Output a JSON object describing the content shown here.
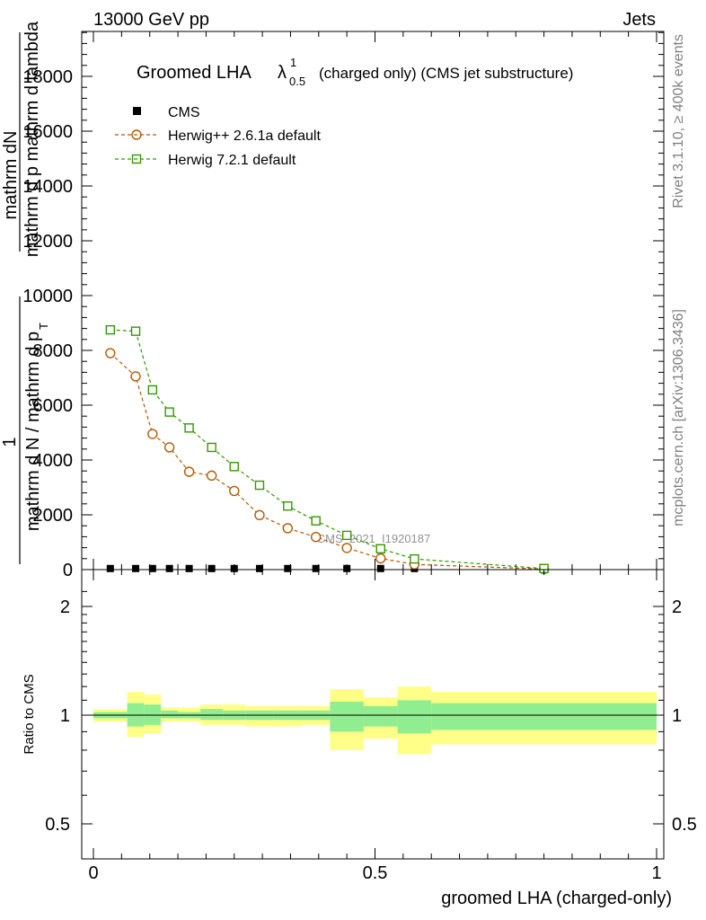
{
  "header": {
    "left": "13000 GeV pp",
    "right": "Jets"
  },
  "side": {
    "top": "Rivet 3.1.10, ≥ 400k events",
    "bottom": "mcplots.cern.ch [arXiv:1306.3436]"
  },
  "watermark": "CMS_2021_I1920187",
  "main": {
    "title_prefix": "Groomed LHA",
    "title_symbol": "λ",
    "title_sup": "1",
    "title_sub": "0.5",
    "title_suffix": "(charged only) (CMS jet substructure)",
    "ylabel_lines": [
      "mathrm dN",
      "mathrm d p_T mathrm d lambda",
      "1",
      "mathrm d N / mathrm d p_T"
    ],
    "ylabel_main": "mathrm d N / mathrm d p",
    "ylabel_top": "mathrm dN",
    "ylabel_mid": "mathrm d p  mathrm d lambda",
    "ylabel_one": "1",
    "ylabel_sub_t": "T"
  },
  "ratio": {
    "ylabel": "Ratio to CMS",
    "xlabel": "groomed LHA (charged-only)"
  },
  "colors": {
    "herwig_old": "#b35900",
    "herwig_new": "#339900",
    "band_yellow": "#ffff88",
    "band_green": "#90ee90"
  },
  "chart_data": [
    {
      "type": "line",
      "title": "Groomed LHA λ^1_0.5 (charged only) (CMS jet substructure)",
      "xlabel": "groomed LHA (charged-only)",
      "ylabel": "1/N dN/dp_T dλ",
      "xlim": [
        -0.02,
        1.0
      ],
      "ylim": [
        0,
        19800
      ],
      "yticks": [
        0,
        2000,
        4000,
        6000,
        8000,
        10000,
        12000,
        14000,
        16000,
        18000
      ],
      "ytick_labels": [
        "0",
        "2000",
        "4000",
        "6000",
        "8000",
        "10000",
        "12000",
        "14000",
        "16000",
        "18000"
      ],
      "legend_position": "top-left",
      "series": [
        {
          "name": "CMS",
          "marker": "filled-square",
          "color": "#000000",
          "x": [
            0.03,
            0.075,
            0.105,
            0.135,
            0.17,
            0.21,
            0.25,
            0.295,
            0.345,
            0.395,
            0.45,
            0.51,
            0.57,
            0.8
          ],
          "y": [
            40,
            40,
            40,
            40,
            40,
            40,
            40,
            40,
            40,
            40,
            40,
            40,
            40,
            40
          ]
        },
        {
          "name": "Herwig++ 2.6.1a default",
          "marker": "open-circle",
          "color": "#b35900",
          "x": [
            0.03,
            0.075,
            0.105,
            0.135,
            0.17,
            0.21,
            0.25,
            0.295,
            0.345,
            0.395,
            0.45,
            0.51,
            0.57,
            0.8
          ],
          "y": [
            7900,
            7050,
            4950,
            4460,
            3570,
            3430,
            2870,
            1990,
            1510,
            1190,
            790,
            410,
            190,
            20
          ]
        },
        {
          "name": "Herwig 7.2.1 default",
          "marker": "open-square",
          "color": "#339900",
          "x": [
            0.03,
            0.075,
            0.105,
            0.135,
            0.17,
            0.21,
            0.25,
            0.295,
            0.345,
            0.395,
            0.45,
            0.51,
            0.57,
            0.8
          ],
          "y": [
            8750,
            8700,
            6560,
            5750,
            5170,
            4460,
            3760,
            3080,
            2320,
            1780,
            1250,
            760,
            390,
            40
          ]
        }
      ]
    },
    {
      "type": "area",
      "title": "Ratio to CMS",
      "xlabel": "groomed LHA (charged-only)",
      "ylabel": "Ratio to CMS",
      "xlim": [
        -0.02,
        1.0
      ],
      "ylim": [
        0.4,
        2.4
      ],
      "yscale": "log",
      "yticks": [
        0.5,
        1,
        2
      ],
      "ytick_labels": [
        "0.5",
        "1",
        "2"
      ],
      "xticks": [
        0,
        0.5,
        1
      ],
      "xtick_labels": [
        "0",
        "0.5",
        "1"
      ],
      "reference_line": 1,
      "bins": [
        {
          "x0": 0.0,
          "x1": 0.06,
          "yellow": [
            0.96,
            1.04
          ],
          "green": [
            0.98,
            1.02
          ]
        },
        {
          "x0": 0.06,
          "x1": 0.09,
          "yellow": [
            0.87,
            1.16
          ],
          "green": [
            0.93,
            1.08
          ]
        },
        {
          "x0": 0.09,
          "x1": 0.12,
          "yellow": [
            0.89,
            1.14
          ],
          "green": [
            0.94,
            1.07
          ]
        },
        {
          "x0": 0.12,
          "x1": 0.15,
          "yellow": [
            0.96,
            1.05
          ],
          "green": [
            0.98,
            1.03
          ]
        },
        {
          "x0": 0.15,
          "x1": 0.19,
          "yellow": [
            0.96,
            1.05
          ],
          "green": [
            0.98,
            1.02
          ]
        },
        {
          "x0": 0.19,
          "x1": 0.23,
          "yellow": [
            0.94,
            1.07
          ],
          "green": [
            0.97,
            1.04
          ]
        },
        {
          "x0": 0.23,
          "x1": 0.27,
          "yellow": [
            0.94,
            1.07
          ],
          "green": [
            0.97,
            1.03
          ]
        },
        {
          "x0": 0.27,
          "x1": 0.32,
          "yellow": [
            0.93,
            1.06
          ],
          "green": [
            0.97,
            1.03
          ]
        },
        {
          "x0": 0.32,
          "x1": 0.37,
          "yellow": [
            0.93,
            1.06
          ],
          "green": [
            0.97,
            1.03
          ]
        },
        {
          "x0": 0.37,
          "x1": 0.42,
          "yellow": [
            0.94,
            1.06
          ],
          "green": [
            0.97,
            1.03
          ]
        },
        {
          "x0": 0.42,
          "x1": 0.48,
          "yellow": [
            0.8,
            1.18
          ],
          "green": [
            0.9,
            1.09
          ]
        },
        {
          "x0": 0.48,
          "x1": 0.54,
          "yellow": [
            0.86,
            1.12
          ],
          "green": [
            0.93,
            1.06
          ]
        },
        {
          "x0": 0.54,
          "x1": 0.6,
          "yellow": [
            0.78,
            1.2
          ],
          "green": [
            0.89,
            1.1
          ]
        },
        {
          "x0": 0.6,
          "x1": 1.0,
          "yellow": [
            0.83,
            1.16
          ],
          "green": [
            0.91,
            1.08
          ]
        }
      ]
    }
  ]
}
